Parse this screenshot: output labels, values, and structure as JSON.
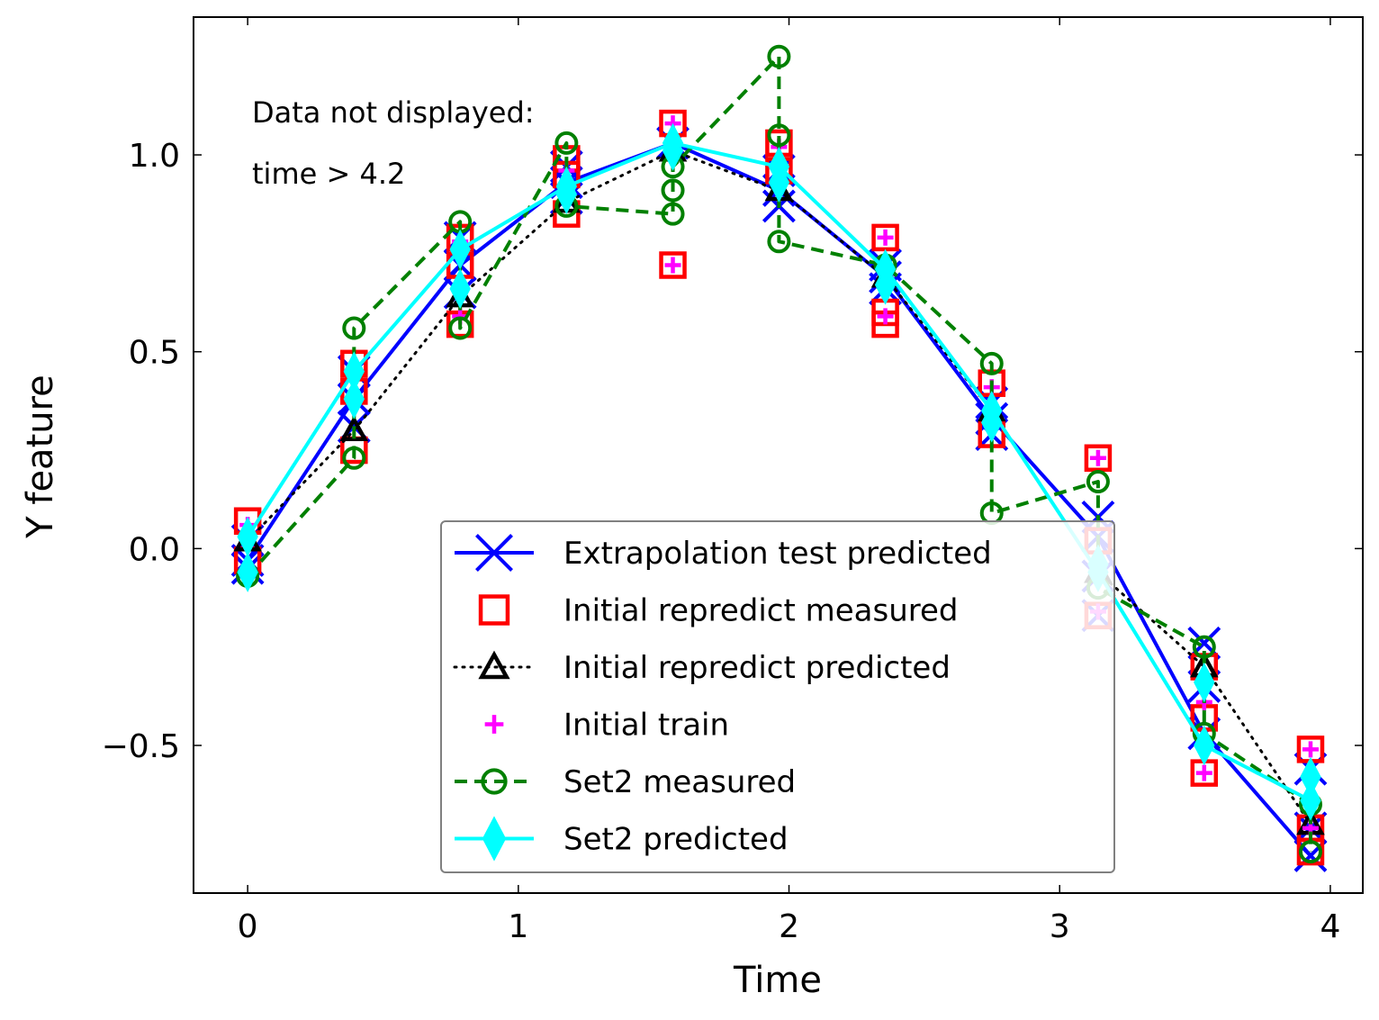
{
  "chart_data": {
    "type": "line",
    "title": "",
    "xlabel": "Time",
    "ylabel": "Y feature",
    "xlim": [
      -0.2,
      4.12
    ],
    "ylim": [
      -0.875,
      1.35
    ],
    "xticks": [
      0,
      1,
      2,
      3,
      4
    ],
    "xtick_labels": [
      "0",
      "1",
      "2",
      "3",
      "4"
    ],
    "yticks": [
      -0.5,
      0.0,
      0.5,
      1.0
    ],
    "ytick_labels": [
      "−0.5",
      "0.0",
      "0.5",
      "1.0"
    ],
    "grid": false,
    "legend_position": "lower-right",
    "annotation": [
      "Data not displayed:",
      "time > 4.2"
    ],
    "x": [
      0,
      0.393,
      0.785,
      1.178,
      1.571,
      1.963,
      2.356,
      2.749,
      3.142,
      3.534,
      3.927
    ],
    "series": [
      {
        "name": "Extrapolation test predicted",
        "style": "solid",
        "marker": "x",
        "color": "#0000ff",
        "x": [
          0,
          0.393,
          0.785,
          1.178,
          1.571,
          1.963,
          2.356,
          2.749,
          3.142,
          3.534,
          3.927
        ],
        "values": [
          -0.03,
          0.38,
          0.72,
          0.93,
          1.03,
          0.91,
          0.69,
          0.33,
          0.03,
          -0.47,
          -0.78
        ],
        "extra_points": [
          [
            0,
            0.02
          ],
          [
            0,
            -0.05
          ],
          [
            0.393,
            0.45
          ],
          [
            0.393,
            0.31
          ],
          [
            0.785,
            0.79
          ],
          [
            0.785,
            0.65
          ],
          [
            1.178,
            0.97
          ],
          [
            1.178,
            0.89
          ],
          [
            1.963,
            0.96
          ],
          [
            1.963,
            0.87
          ],
          [
            2.356,
            0.72
          ],
          [
            2.356,
            0.66
          ],
          [
            2.749,
            0.37
          ],
          [
            2.749,
            0.29
          ],
          [
            3.142,
            0.08
          ],
          [
            3.142,
            -0.07
          ],
          [
            3.142,
            -0.17
          ],
          [
            3.534,
            -0.24
          ],
          [
            3.534,
            -0.35
          ],
          [
            3.927,
            -0.56
          ],
          [
            3.927,
            -0.71
          ]
        ]
      },
      {
        "name": "Initial repredict measured",
        "style": "none",
        "marker": "square",
        "color": "#ff0000",
        "x": [
          0,
          0,
          0.393,
          0.393,
          0.393,
          0.785,
          0.785,
          0.785,
          1.178,
          1.178,
          1.178,
          1.571,
          1.571,
          1.963,
          1.963,
          2.356,
          2.356,
          2.356,
          2.749,
          2.749,
          3.142,
          3.142,
          3.142,
          3.534,
          3.534,
          3.534,
          3.927,
          3.927,
          3.927
        ],
        "values": [
          0.07,
          -0.03,
          0.47,
          0.4,
          0.25,
          0.79,
          0.72,
          0.57,
          0.99,
          0.95,
          0.85,
          1.08,
          0.72,
          1.03,
          0.96,
          0.79,
          0.6,
          0.57,
          0.42,
          0.29,
          0.23,
          0.02,
          -0.17,
          -0.3,
          -0.43,
          -0.57,
          -0.51,
          -0.71,
          -0.77
        ]
      },
      {
        "name": "Initial repredict predicted",
        "style": "dotted",
        "marker": "triangle",
        "color": "#000000",
        "x": [
          0,
          0.393,
          0.785,
          1.178,
          1.571,
          1.963,
          2.356,
          2.749,
          3.142,
          3.534,
          3.927
        ],
        "values": [
          0.02,
          0.3,
          0.64,
          0.88,
          1.01,
          0.91,
          0.69,
          0.35,
          -0.06,
          -0.3,
          -0.7
        ]
      },
      {
        "name": "Initial train",
        "style": "none",
        "marker": "plus",
        "color": "#ff00ff",
        "x": [
          0,
          0.393,
          0.393,
          0.785,
          0.785,
          1.178,
          1.571,
          1.571,
          1.963,
          2.356,
          2.356,
          2.749,
          3.142,
          3.142,
          3.534,
          3.534,
          3.927,
          3.927
        ],
        "values": [
          0.06,
          0.45,
          0.38,
          0.78,
          0.59,
          0.96,
          1.08,
          0.72,
          1.02,
          0.79,
          0.59,
          0.41,
          0.23,
          -0.16,
          -0.39,
          -0.57,
          -0.51,
          -0.71
        ]
      },
      {
        "name": "Set2 measured",
        "style": "dashed",
        "marker": "circle",
        "color": "#008000",
        "x": [
          0,
          0.393,
          0.393,
          0.785,
          0.785,
          1.178,
          1.178,
          1.571,
          1.571,
          1.571,
          1.963,
          1.963,
          1.963,
          2.356,
          2.749,
          2.749,
          3.142,
          3.142,
          3.534,
          3.534,
          3.927,
          3.927
        ],
        "values": [
          -0.07,
          0.23,
          0.56,
          0.83,
          0.56,
          1.03,
          0.87,
          0.85,
          0.91,
          0.97,
          1.25,
          1.05,
          0.78,
          0.72,
          0.47,
          0.09,
          0.17,
          -0.1,
          -0.25,
          -0.47,
          -0.65,
          -0.77
        ]
      },
      {
        "name": "Set2 predicted",
        "style": "solid",
        "marker": "thin_diamond",
        "color": "#00ffff",
        "x": [
          0,
          0.393,
          0.785,
          1.178,
          1.571,
          1.963,
          2.356,
          2.749,
          3.142,
          3.534,
          3.927
        ],
        "values": [
          0.03,
          0.45,
          0.76,
          0.92,
          1.03,
          0.97,
          0.71,
          0.35,
          -0.06,
          -0.5,
          -0.64
        ],
        "extra_points": [
          [
            0,
            -0.06
          ],
          [
            0.393,
            0.38
          ],
          [
            0.785,
            0.66
          ],
          [
            1.178,
            0.9
          ],
          [
            1.571,
            1.01
          ],
          [
            1.963,
            0.93
          ],
          [
            2.356,
            0.67
          ],
          [
            2.749,
            0.32
          ],
          [
            3.142,
            -0.04
          ],
          [
            3.534,
            -0.34
          ],
          [
            3.927,
            -0.58
          ]
        ]
      }
    ]
  }
}
